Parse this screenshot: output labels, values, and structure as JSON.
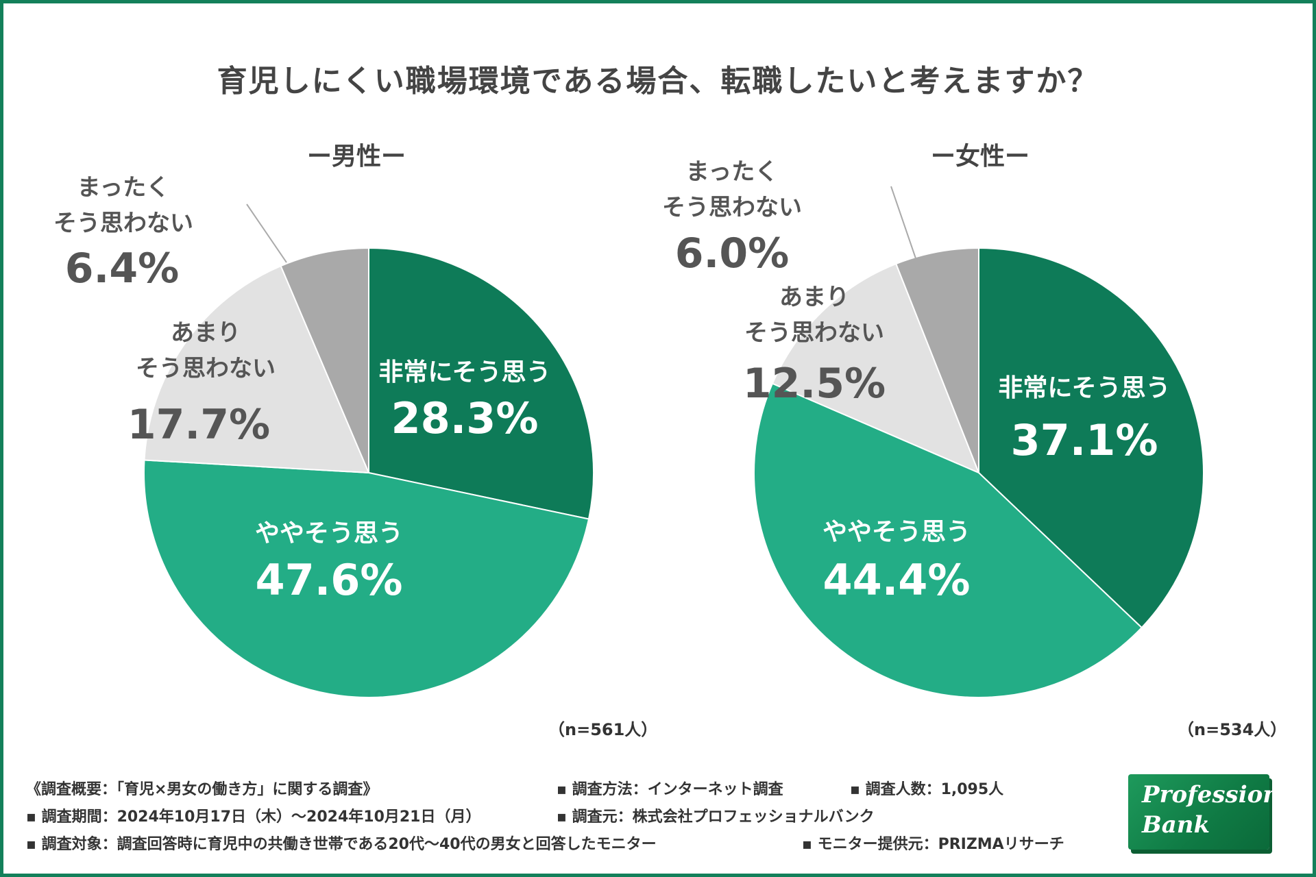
{
  "title": "育児しにくい職場環境である場合、転職したいと考えますか？",
  "colors": {
    "very": "#0e7b58",
    "somewhat": "#23ad86",
    "notmuch": "#e2e2e2",
    "notatall": "#a9a9a9",
    "border": "#13805a",
    "dark_text": "#555555"
  },
  "chart_data": [
    {
      "type": "pie",
      "title": "ー男性ー",
      "n_label": "（n=561人）",
      "slices": [
        {
          "name": "非常にそう思う",
          "label_lines": [
            "非常にそう思う"
          ],
          "value": 28.3,
          "display": "28.3%",
          "color_key": "very",
          "text_color": "#ffffff"
        },
        {
          "name": "ややそう思う",
          "label_lines": [
            "ややそう思う"
          ],
          "value": 47.6,
          "display": "47.6%",
          "color_key": "somewhat",
          "text_color": "#ffffff"
        },
        {
          "name": "あまりそう思わない",
          "label_lines": [
            "あまり",
            "そう思わない"
          ],
          "value": 17.7,
          "display": "17.7%",
          "color_key": "notmuch",
          "text_color": "#555555"
        },
        {
          "name": "まったくそう思わない",
          "label_lines": [
            "まったく",
            "そう思わない"
          ],
          "value": 6.4,
          "display": "6.4%",
          "color_key": "notatall",
          "text_color": "#555555"
        }
      ]
    },
    {
      "type": "pie",
      "title": "ー女性ー",
      "n_label": "（n=534人）",
      "slices": [
        {
          "name": "非常にそう思う",
          "label_lines": [
            "非常にそう思う"
          ],
          "value": 37.1,
          "display": "37.1%",
          "color_key": "very",
          "text_color": "#ffffff"
        },
        {
          "name": "ややそう思う",
          "label_lines": [
            "ややそう思う"
          ],
          "value": 44.4,
          "display": "44.4%",
          "color_key": "somewhat",
          "text_color": "#ffffff"
        },
        {
          "name": "あまりそう思わない",
          "label_lines": [
            "あまり",
            "そう思わない"
          ],
          "value": 12.5,
          "display": "12.5%",
          "color_key": "notmuch",
          "text_color": "#555555"
        },
        {
          "name": "まったくそう思わない",
          "label_lines": [
            "まったく",
            "そう思わない"
          ],
          "value": 6.0,
          "display": "6.0%",
          "color_key": "notatall",
          "text_color": "#555555"
        }
      ]
    }
  ],
  "footer": {
    "overview": "《調査概要：「育児×男女の働き方」に関する調査》",
    "method": "▪ 調査方法：インターネット調査",
    "count": "▪ 調査人数：1,095人",
    "period": "▪ 調査期間：2024年10月17日（木）～2024年10月21日（月）",
    "source": "▪ 調査元：株式会社プロフェッショナルバンク",
    "target": "▪ 調査対象：調査回答時に育児中の共働き世帯である20代～40代の男女と回答したモニター",
    "provider": "▪ モニター提供元：PRIZMAリサーチ"
  },
  "logo": {
    "line1": "Professional",
    "line2": "Bank"
  }
}
